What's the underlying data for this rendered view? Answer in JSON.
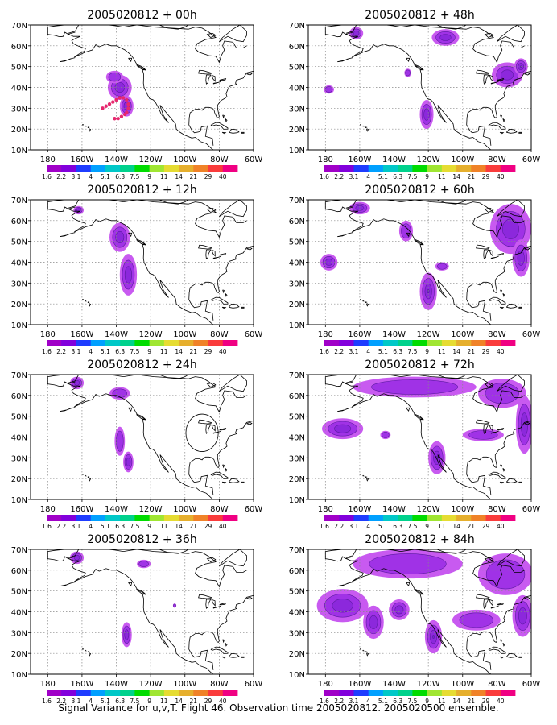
{
  "panels": [
    {
      "title": "2005020812 + 00h",
      "blobs": [
        {
          "lon": -138,
          "lat": 40,
          "rx": 7,
          "ry": 6,
          "level": 2
        },
        {
          "lon": -134,
          "lat": 31,
          "rx": 4,
          "ry": 5,
          "level": 2
        },
        {
          "lon": -141,
          "lat": 45,
          "rx": 5,
          "ry": 3,
          "level": 1
        }
      ]
    },
    {
      "title": "2005020812 + 48h",
      "blobs": [
        {
          "lon": -162,
          "lat": 66,
          "rx": 4,
          "ry": 3,
          "level": 2
        },
        {
          "lon": -110,
          "lat": 64,
          "rx": 8,
          "ry": 4,
          "level": 2
        },
        {
          "lon": -132,
          "lat": 47,
          "rx": 2,
          "ry": 2,
          "level": 1
        },
        {
          "lon": -178,
          "lat": 39,
          "rx": 3,
          "ry": 2,
          "level": 1
        },
        {
          "lon": -121,
          "lat": 27,
          "rx": 4,
          "ry": 7,
          "level": 2
        },
        {
          "lon": -74,
          "lat": 46,
          "rx": 9,
          "ry": 6,
          "level": 2
        },
        {
          "lon": -66,
          "lat": 50,
          "rx": 4,
          "ry": 4,
          "level": 3
        }
      ]
    },
    {
      "title": "2005020812 + 12h",
      "blobs": [
        {
          "lon": -162,
          "lat": 65,
          "rx": 3,
          "ry": 2,
          "level": 2
        },
        {
          "lon": -138,
          "lat": 52,
          "rx": 6,
          "ry": 7,
          "level": 2
        },
        {
          "lon": -133,
          "lat": 34,
          "rx": 5,
          "ry": 10,
          "level": 2
        }
      ]
    },
    {
      "title": "2005020812 + 60h",
      "blobs": [
        {
          "lon": -160,
          "lat": 66,
          "rx": 6,
          "ry": 3,
          "level": 2
        },
        {
          "lon": -133,
          "lat": 55,
          "rx": 4,
          "ry": 5,
          "level": 1
        },
        {
          "lon": -178,
          "lat": 40,
          "rx": 5,
          "ry": 4,
          "level": 2
        },
        {
          "lon": -120,
          "lat": 26,
          "rx": 5,
          "ry": 9,
          "level": 3
        },
        {
          "lon": -112,
          "lat": 38,
          "rx": 4,
          "ry": 2,
          "level": 1
        },
        {
          "lon": -72,
          "lat": 56,
          "rx": 12,
          "ry": 12,
          "level": 2
        },
        {
          "lon": -66,
          "lat": 42,
          "rx": 5,
          "ry": 9,
          "level": 2
        }
      ]
    },
    {
      "title": "2005020812 + 24h",
      "blobs": [
        {
          "lon": -163,
          "lat": 66,
          "rx": 4,
          "ry": 3,
          "level": 2
        },
        {
          "lon": -138,
          "lat": 61,
          "rx": 6,
          "ry": 3,
          "level": 1
        },
        {
          "lon": -138,
          "lat": 38,
          "rx": 3,
          "ry": 7,
          "level": 1
        },
        {
          "lon": -133,
          "lat": 28,
          "rx": 3,
          "ry": 5,
          "level": 2
        }
      ]
    },
    {
      "title": "2005020812 + 72h",
      "blobs": [
        {
          "lon": -128,
          "lat": 64,
          "rx": 36,
          "ry": 5,
          "level": 1
        },
        {
          "lon": -77,
          "lat": 61,
          "rx": 14,
          "ry": 7,
          "level": 1
        },
        {
          "lon": -170,
          "lat": 44,
          "rx": 12,
          "ry": 5,
          "level": 2
        },
        {
          "lon": -145,
          "lat": 41,
          "rx": 3,
          "ry": 2,
          "level": 1
        },
        {
          "lon": -115,
          "lat": 30,
          "rx": 5,
          "ry": 8,
          "level": 3
        },
        {
          "lon": -88,
          "lat": 41,
          "rx": 12,
          "ry": 3,
          "level": 1
        },
        {
          "lon": -64,
          "lat": 46,
          "rx": 5,
          "ry": 14,
          "level": 2
        }
      ]
    },
    {
      "title": "2005020812 + 36h",
      "blobs": [
        {
          "lon": -163,
          "lat": 66,
          "rx": 4,
          "ry": 3,
          "level": 2
        },
        {
          "lon": -124,
          "lat": 63,
          "rx": 4,
          "ry": 2,
          "level": 1
        },
        {
          "lon": -134,
          "lat": 29,
          "rx": 3,
          "ry": 6,
          "level": 2
        },
        {
          "lon": -106,
          "lat": 43,
          "rx": 1,
          "ry": 1,
          "level": 1
        }
      ]
    },
    {
      "title": "2005020812 + 84h",
      "blobs": [
        {
          "lon": -132,
          "lat": 63,
          "rx": 32,
          "ry": 7,
          "level": 1
        },
        {
          "lon": -75,
          "lat": 58,
          "rx": 16,
          "ry": 10,
          "level": 1
        },
        {
          "lon": -170,
          "lat": 43,
          "rx": 15,
          "ry": 8,
          "level": 2
        },
        {
          "lon": -152,
          "lat": 35,
          "rx": 6,
          "ry": 8,
          "level": 2
        },
        {
          "lon": -137,
          "lat": 41,
          "rx": 6,
          "ry": 5,
          "level": 2
        },
        {
          "lon": -117,
          "lat": 28,
          "rx": 5,
          "ry": 8,
          "level": 3
        },
        {
          "lon": -92,
          "lat": 36,
          "rx": 14,
          "ry": 5,
          "level": 1
        },
        {
          "lon": -65,
          "lat": 38,
          "rx": 6,
          "ry": 10,
          "level": 2
        }
      ]
    }
  ],
  "markers_00h": [
    {
      "lon": -148,
      "lat": 30
    },
    {
      "lon": -146,
      "lat": 31
    },
    {
      "lon": -144,
      "lat": 32
    },
    {
      "lon": -142,
      "lat": 33
    },
    {
      "lon": -140,
      "lat": 34
    },
    {
      "lon": -138,
      "lat": 35
    },
    {
      "lon": -136,
      "lat": 35
    },
    {
      "lon": -134,
      "lat": 34
    },
    {
      "lon": -133,
      "lat": 32
    },
    {
      "lon": -133,
      "lat": 30
    },
    {
      "lon": -134,
      "lat": 28
    },
    {
      "lon": -135,
      "lat": 27
    },
    {
      "lon": -137,
      "lat": 26
    },
    {
      "lon": -139,
      "lat": 25
    },
    {
      "lon": -141,
      "lat": 25
    }
  ],
  "circle_24h": {
    "lon": -90,
    "lat": 42,
    "r_deg": 9
  },
  "y_ticks": [
    "10N",
    "20N",
    "30N",
    "40N",
    "50N",
    "60N",
    "70N"
  ],
  "x_ticks": [
    "180",
    "160W",
    "140W",
    "120W",
    "100W",
    "80W",
    "60W"
  ],
  "colorbar_labels": [
    "1.6",
    "2.2",
    "3.1",
    "4",
    "5.1",
    "6.3",
    "7.5",
    "9",
    "11",
    "14",
    "21",
    "29",
    "40"
  ],
  "colorbar_colors": [
    "#a000c8",
    "#8200dc",
    "#1e3cff",
    "#00a0ff",
    "#00c8c8",
    "#00d28c",
    "#00dc00",
    "#a0e632",
    "#e6dc32",
    "#e6af2d",
    "#f08228",
    "#fa3c3c",
    "#f00082"
  ],
  "fill_colors": [
    "#c85af0",
    "#a032e6",
    "#8c28dc",
    "#6e28c8"
  ],
  "marker_color": "#e6286e",
  "caption": "Signal Variance for u,v,T. Flight 46. Observation time 2005020812. 2005020500 ensemble."
}
